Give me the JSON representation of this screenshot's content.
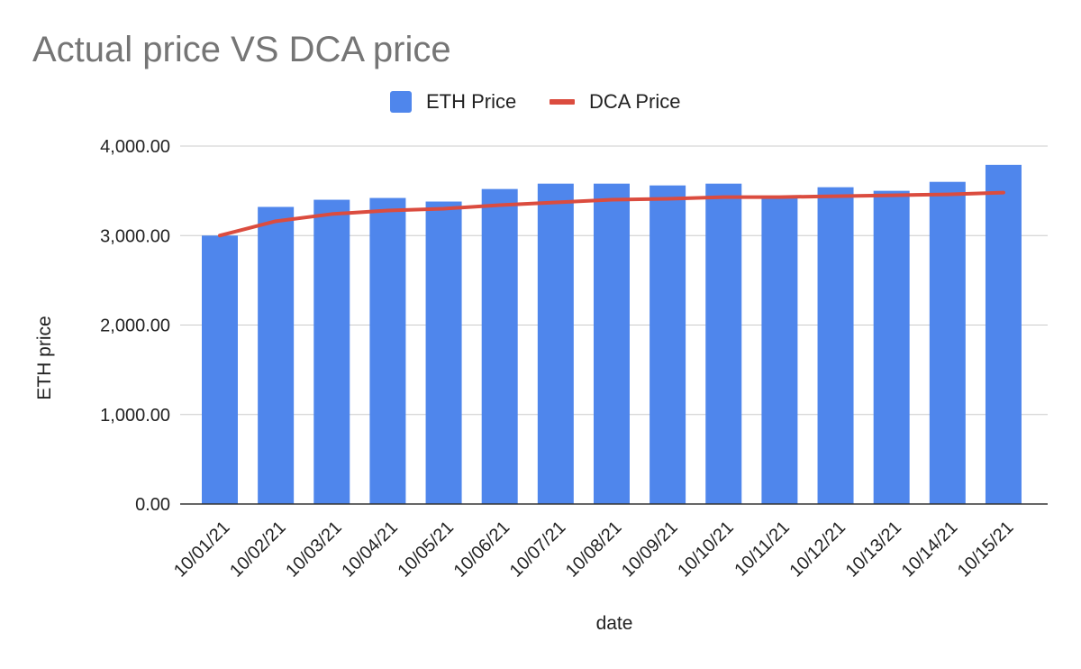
{
  "chart_data": {
    "type": "bar",
    "title": "Actual price VS DCA price",
    "xlabel": "date",
    "ylabel": "ETH price",
    "categories": [
      "10/01/21",
      "10/02/21",
      "10/03/21",
      "10/04/21",
      "10/05/21",
      "10/06/21",
      "10/07/21",
      "10/08/21",
      "10/09/21",
      "10/10/21",
      "10/11/21",
      "10/12/21",
      "10/13/21",
      "10/14/21",
      "10/15/21"
    ],
    "series": [
      {
        "name": "ETH Price",
        "type": "bar",
        "color": "#4f86ec",
        "values": [
          3000,
          3320,
          3400,
          3420,
          3380,
          3520,
          3580,
          3580,
          3560,
          3580,
          3420,
          3540,
          3500,
          3600,
          3790
        ]
      },
      {
        "name": "DCA Price",
        "type": "line",
        "color": "#db4c3f",
        "values": [
          3000,
          3160,
          3240,
          3280,
          3300,
          3340,
          3370,
          3400,
          3410,
          3430,
          3430,
          3440,
          3450,
          3460,
          3480
        ]
      }
    ],
    "ylim": [
      0,
      4000
    ],
    "yticks": [
      0,
      1000,
      2000,
      3000,
      4000
    ],
    "ytick_labels": [
      "0.00",
      "1,000.00",
      "2,000.00",
      "3,000.00",
      "4,000.00"
    ],
    "grid": true,
    "legend_position": "top-center"
  }
}
